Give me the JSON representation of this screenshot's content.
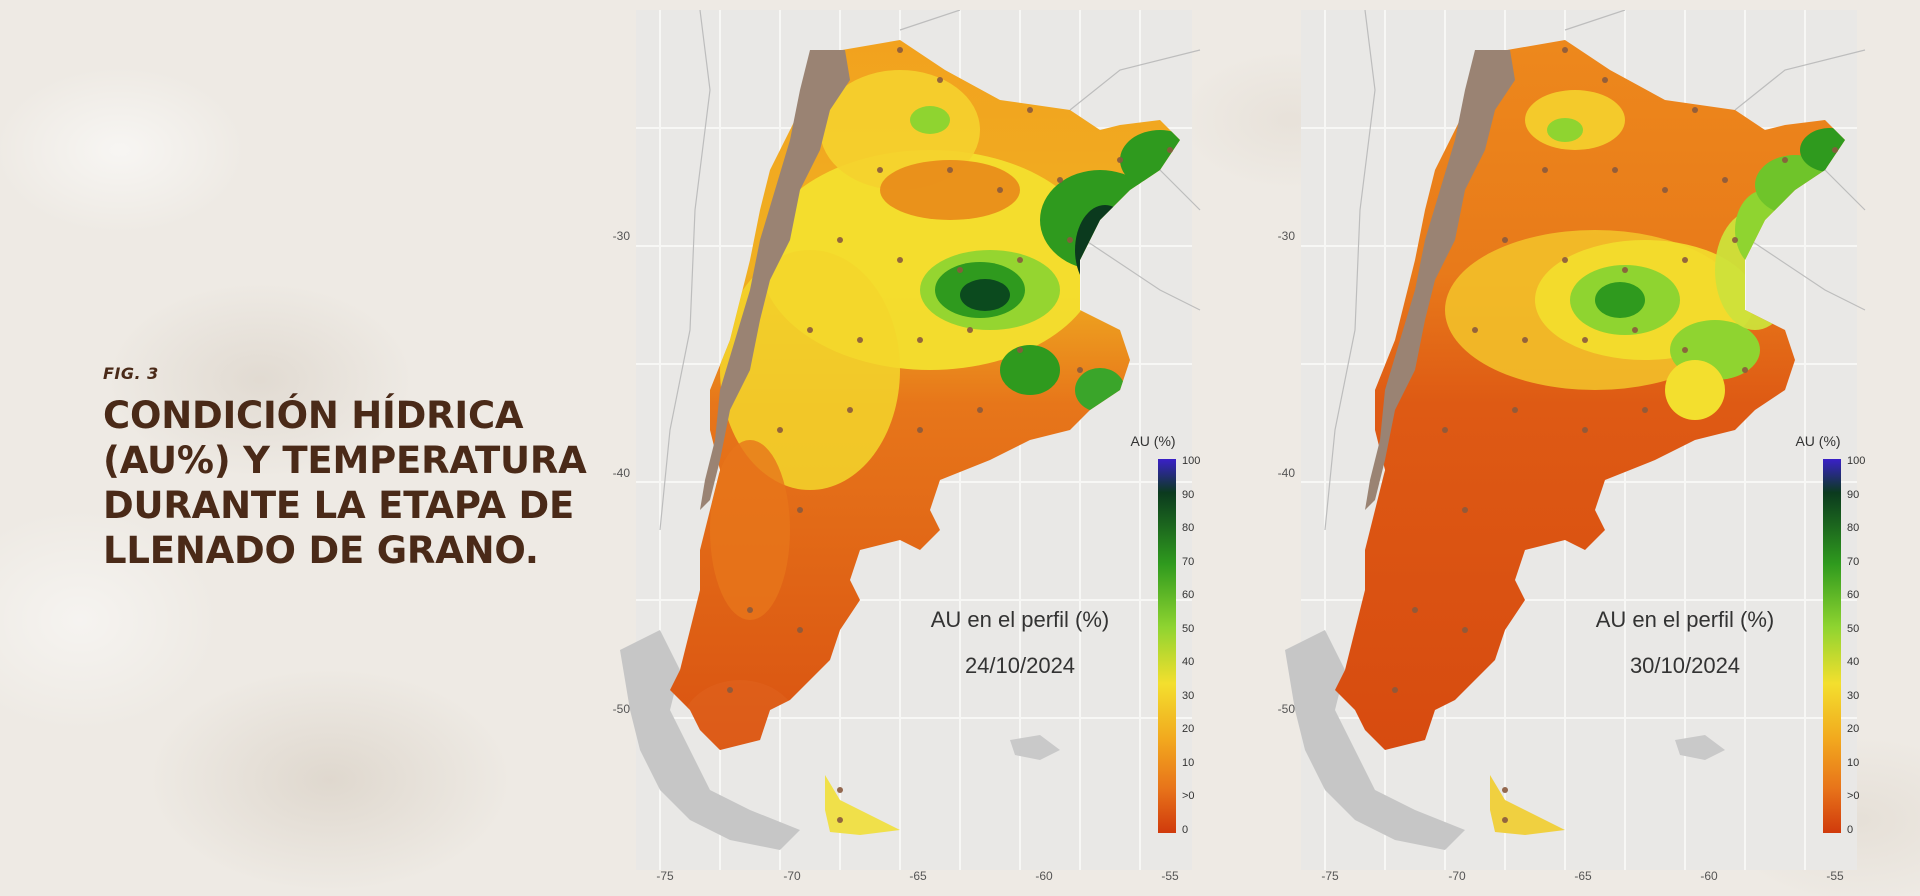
{
  "figure": {
    "label": "FIG. 3",
    "title_lines": [
      "CONDICIÓN HÍDRICA",
      "(AU%) Y TEMPERATURA",
      "DURANTE LA ETAPA DE",
      "LLENADO DE GRANO."
    ]
  },
  "maps": [
    {
      "id": "map-24-10",
      "annotation_title": "AU en el perfil (%)",
      "date": "24/10/2024",
      "legend_title": "AU (%)",
      "legend_ticks": [
        "100",
        "90",
        "80",
        "70",
        "60",
        "50",
        "40",
        "30",
        "20",
        "10",
        ">0",
        "0"
      ],
      "lat_ticks": [
        "-30",
        "-40",
        "-50"
      ],
      "lon_ticks": [
        "-75",
        "-70",
        "-65",
        "-60",
        "-55"
      ]
    },
    {
      "id": "map-30-10",
      "annotation_title": "AU en el perfil (%)",
      "date": "30/10/2024",
      "legend_title": "AU (%)",
      "legend_ticks": [
        "100",
        "90",
        "80",
        "70",
        "60",
        "50",
        "40",
        "30",
        "20",
        "10",
        ">0",
        "0"
      ],
      "lat_ticks": [
        "-30",
        "-40",
        "-50"
      ],
      "lon_ticks": [
        "-75",
        "-70",
        "-65",
        "-60",
        "-55"
      ]
    }
  ],
  "colors": {
    "title_text": "#4a2a18",
    "mountain_mask": "#9a8373",
    "dry": "#d4450e",
    "orange": "#ef8a1a",
    "yellow": "#f3df2e",
    "light_green": "#8fd430",
    "green": "#2f9a1e",
    "dark_green": "#0b4a1e",
    "blue_saturated": "#3a20c8",
    "station_dot": "#8a5a3e"
  }
}
